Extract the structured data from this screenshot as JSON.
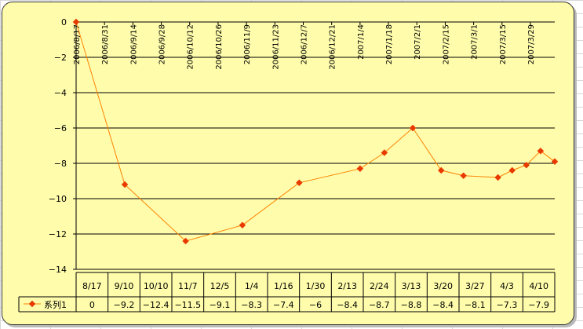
{
  "chart_data": {
    "type": "line",
    "top_dates": [
      "2006/8/17",
      "2006/8/31",
      "2006/9/14",
      "2006/9/28",
      "2006/10/12",
      "2006/10/26",
      "2006/11/9",
      "2006/11/23",
      "2006/12/7",
      "2006/12/21",
      "2007/1/4",
      "2007/1/18",
      "2007/2/1",
      "2007/2/15",
      "2007/3/1",
      "2007/3/15",
      "2007/3/29"
    ],
    "categories": [
      "8/17",
      "9/10",
      "10/10",
      "11/7",
      "12/5",
      "1/4",
      "1/16",
      "1/30",
      "2/13",
      "2/24",
      "3/13",
      "3/20",
      "3/27",
      "4/3",
      "4/10"
    ],
    "table_values": [
      "0",
      "-9.2",
      "-12.4",
      "-11.5",
      "-9.1",
      "-8.3",
      "-7.4",
      "-6",
      "-8.4",
      "-8.7",
      "-8.8",
      "-8.4",
      "-8.1",
      "-7.3",
      "-7.9"
    ],
    "series": [
      {
        "name": "系列1",
        "color": "#ff8000",
        "marker_color": "#e83a00",
        "points": [
          [
            "2006/8/17",
            0
          ],
          [
            "2006/9/10",
            -9.2
          ],
          [
            "2006/10/10",
            -12.4
          ],
          [
            "2006/11/7",
            -11.5
          ],
          [
            "2006/12/5",
            -9.1
          ],
          [
            "2007/1/4",
            -8.3
          ],
          [
            "2007/1/16",
            -7.4
          ],
          [
            "2007/1/30",
            -6
          ],
          [
            "2007/2/13",
            -8.4
          ],
          [
            "2007/2/24",
            -8.7
          ],
          [
            "2007/3/13",
            -8.8
          ],
          [
            "2007/3/20",
            -8.4
          ],
          [
            "2007/3/27",
            -8.1
          ],
          [
            "2007/4/3",
            -7.3
          ],
          [
            "2007/4/10",
            -7.9
          ]
        ]
      }
    ],
    "y_ticks": [
      "0",
      "-2",
      "-4",
      "-6",
      "-8",
      "-10",
      "-12",
      "-14"
    ],
    "ylim": [
      -14,
      0
    ],
    "xlim": [
      "2006/8/17",
      "2007/4/10"
    ],
    "grid": true,
    "legend_placement": "data-table-left",
    "background_color": "#fffdab"
  }
}
